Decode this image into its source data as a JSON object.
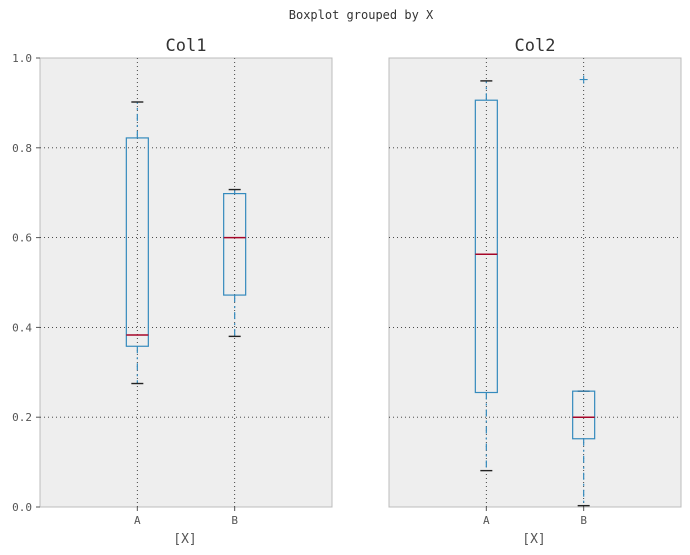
{
  "figure_title": "Boxplot grouped by X",
  "colors": {
    "background": "#eeeeee",
    "box": "#348abd",
    "median": "#a60628",
    "cap": "#222222",
    "grid": "#333333"
  },
  "chart_data": [
    {
      "type": "boxplot",
      "title": "Col1",
      "xlabel": "[X]",
      "ylabel": "",
      "ylim": [
        0.0,
        1.0
      ],
      "yticks": [
        "0.0",
        "0.2",
        "0.4",
        "0.6",
        "0.8",
        "1.0"
      ],
      "grid": true,
      "categories": [
        "A",
        "B"
      ],
      "boxes": [
        {
          "category": "A",
          "whisker_low": 0.275,
          "q1": 0.358,
          "median": 0.383,
          "q3": 0.822,
          "whisker_high": 0.902,
          "fliers": []
        },
        {
          "category": "B",
          "whisker_low": 0.38,
          "q1": 0.472,
          "median": 0.6,
          "q3": 0.698,
          "whisker_high": 0.707,
          "fliers": []
        }
      ]
    },
    {
      "type": "boxplot",
      "title": "Col2",
      "xlabel": "[X]",
      "ylabel": "",
      "ylim": [
        0.0,
        1.0
      ],
      "yticks": [
        "0.0",
        "0.2",
        "0.4",
        "0.6",
        "0.8",
        "1.0"
      ],
      "grid": true,
      "categories": [
        "A",
        "B"
      ],
      "boxes": [
        {
          "category": "A",
          "whisker_low": 0.081,
          "q1": 0.255,
          "median": 0.563,
          "q3": 0.906,
          "whisker_high": 0.949,
          "fliers": []
        },
        {
          "category": "B",
          "whisker_low": 0.003,
          "q1": 0.152,
          "median": 0.2,
          "q3": 0.258,
          "whisker_high": 0.258,
          "fliers": [
            0.952
          ]
        }
      ]
    }
  ]
}
